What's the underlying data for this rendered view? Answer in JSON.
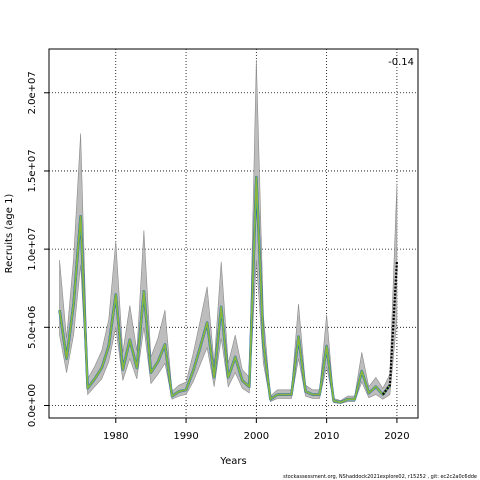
{
  "chart_data": {
    "type": "line",
    "title": "",
    "xlabel": "Years",
    "ylabel": "Recruits (age 1)",
    "xlim": [
      1970.5,
      2023
    ],
    "ylim": [
      -800000,
      22800000
    ],
    "x_ticks": [
      1980,
      1990,
      2000,
      2010,
      2020
    ],
    "x_tick_labels": [
      "1980",
      "1990",
      "2000",
      "2010",
      "2020"
    ],
    "y_ticks": [
      0,
      5000000,
      10000000,
      15000000,
      20000000
    ],
    "y_tick_labels": [
      "0.0e+00",
      "5.0e+06",
      "1.0e+07",
      "1.5e+07",
      "2.0e+07"
    ],
    "grid": true,
    "annotation": "-0.14",
    "footer": "stockassessment.org, NShaddock2021explore02, r15252 , git: ec2c2a0c6dde",
    "x": [
      1972,
      1973,
      1974,
      1975,
      1976,
      1977,
      1978,
      1979,
      1980,
      1981,
      1982,
      1983,
      1984,
      1985,
      1986,
      1987,
      1988,
      1989,
      1990,
      1991,
      1992,
      1993,
      1994,
      1995,
      1996,
      1997,
      1998,
      1999,
      2000,
      2001,
      2002,
      2003,
      2004,
      2005,
      2006,
      2007,
      2008,
      2009,
      2010,
      2011,
      2012,
      2013,
      2014,
      2015,
      2016,
      2017,
      2018,
      2019,
      2020
    ],
    "series": [
      {
        "values": [
          6100000,
          3000000,
          6500000,
          12100000,
          1100000,
          1700000,
          2400000,
          3800000,
          7100000,
          2300000,
          4200000,
          2400000,
          7300000,
          2100000,
          2800000,
          3900000,
          600000,
          900000,
          1000000,
          2200000,
          3700000,
          5300000,
          1800000,
          6300000,
          1800000,
          3100000,
          1600000,
          1200000,
          14600000,
          4000000,
          400000,
          700000,
          700000,
          700000,
          4400000,
          900000,
          700000,
          700000,
          3800000,
          300000,
          200000,
          400000,
          400000,
          2200000,
          800000,
          1200000,
          700000,
          1300000,
          9200000
        ],
        "lower": [
          4500000,
          2100000,
          4500000,
          9000000,
          700000,
          1200000,
          1700000,
          2800000,
          5000000,
          1600000,
          3000000,
          1700000,
          5000000,
          1400000,
          2000000,
          2700000,
          400000,
          600000,
          700000,
          1500000,
          2600000,
          3700000,
          1200000,
          4300000,
          1200000,
          2100000,
          1100000,
          800000,
          9300000,
          2700000,
          250000,
          450000,
          450000,
          450000,
          3000000,
          600000,
          450000,
          450000,
          2500000,
          180000,
          120000,
          250000,
          250000,
          1500000,
          500000,
          700000,
          400000,
          700000,
          5500000
        ],
        "upper": [
          9300000,
          4300000,
          9400000,
          17400000,
          1700000,
          2500000,
          3500000,
          5500000,
          10500000,
          3400000,
          6400000,
          3500000,
          11200000,
          3100000,
          4300000,
          6100000,
          900000,
          1300000,
          1500000,
          3300000,
          5400000,
          7600000,
          2700000,
          9200000,
          2700000,
          4500000,
          2300000,
          1800000,
          22100000,
          5800000,
          600000,
          1000000,
          1000000,
          1000000,
          6500000,
          1300000,
          1000000,
          1000000,
          5800000,
          450000,
          320000,
          600000,
          600000,
          3400000,
          1200000,
          1800000,
          1100000,
          2000000,
          14200000
        ]
      }
    ]
  }
}
